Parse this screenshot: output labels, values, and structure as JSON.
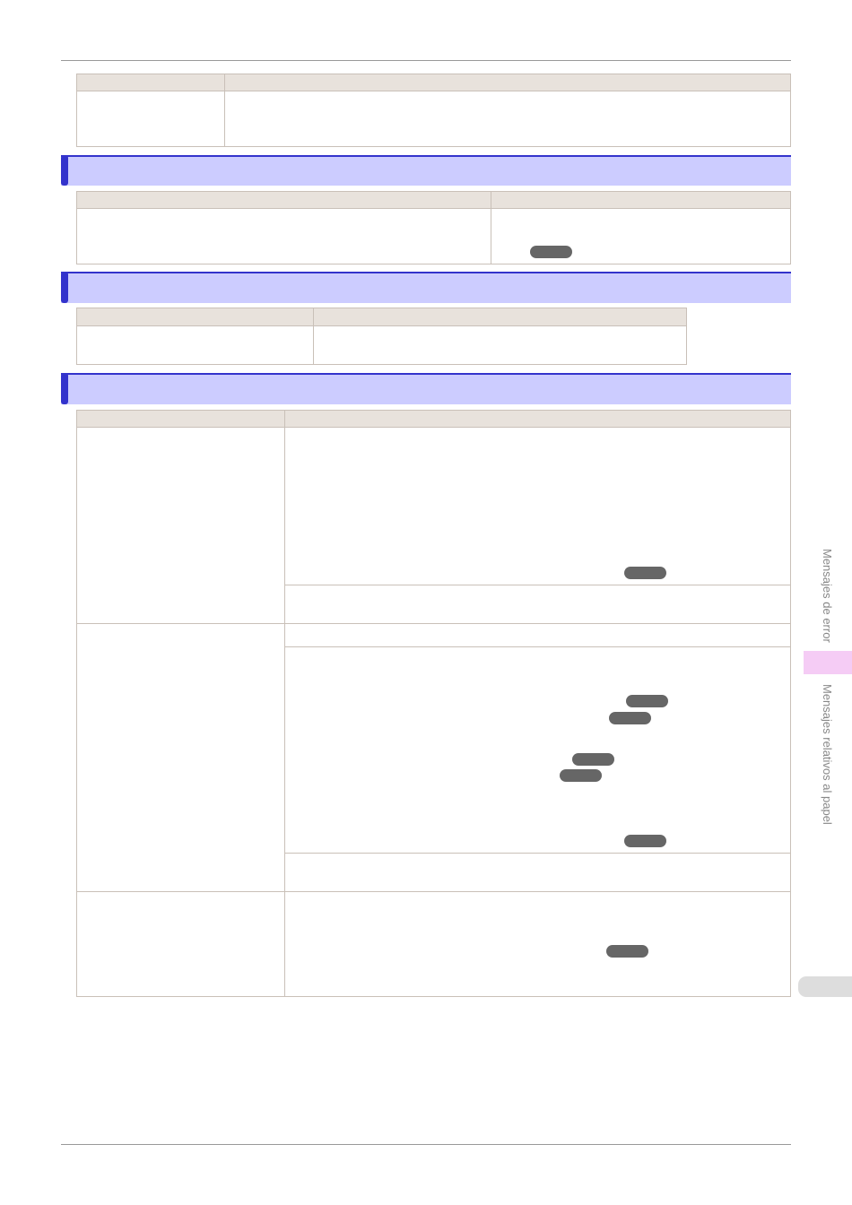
{
  "side_tabs": {
    "chapter": "Mensajes de error",
    "section": "Mensajes relativos al papel"
  }
}
